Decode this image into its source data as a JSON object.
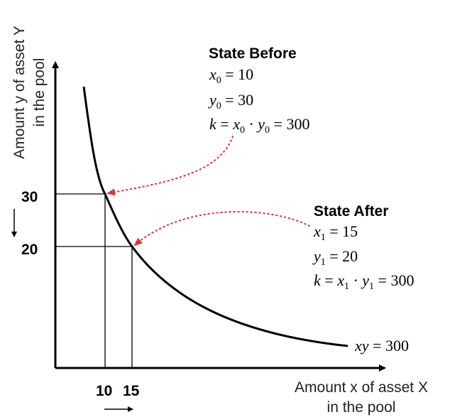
{
  "axes": {
    "y_label_line1": "Amount y of asset Y",
    "y_label_line2": "in the pool",
    "x_label_line1": "Amount x of asset X",
    "x_label_line2": "in the pool",
    "x_ticks": [
      "10",
      "15"
    ],
    "y_ticks": [
      "30",
      "20"
    ]
  },
  "curve": {
    "label_var": "xy",
    "label_rest": " = 300"
  },
  "state_before": {
    "title": "State Before",
    "x_var": "x",
    "x_sub": "0",
    "x_eq": " = 10",
    "y_var": "y",
    "y_sub": "0",
    "y_eq": " = 30",
    "k_var": "k",
    "k_eq": " = ",
    "k_x": "x",
    "k_x_sub": "0",
    "k_dot": " · ",
    "k_y": "y",
    "k_y_sub": "0",
    "k_result": " = 300"
  },
  "state_after": {
    "title": "State After",
    "x_var": "x",
    "x_sub": "1",
    "x_eq": " = 15",
    "y_var": "y",
    "y_sub": "1",
    "y_eq": " = 20",
    "k_var": "k",
    "k_eq": " = ",
    "k_x": "x",
    "k_x_sub": "1",
    "k_dot": " · ",
    "k_y": "y",
    "k_y_sub": "1",
    "k_result": " = 300"
  },
  "colors": {
    "axis": "#000000",
    "pointer": "#e8302a"
  }
}
